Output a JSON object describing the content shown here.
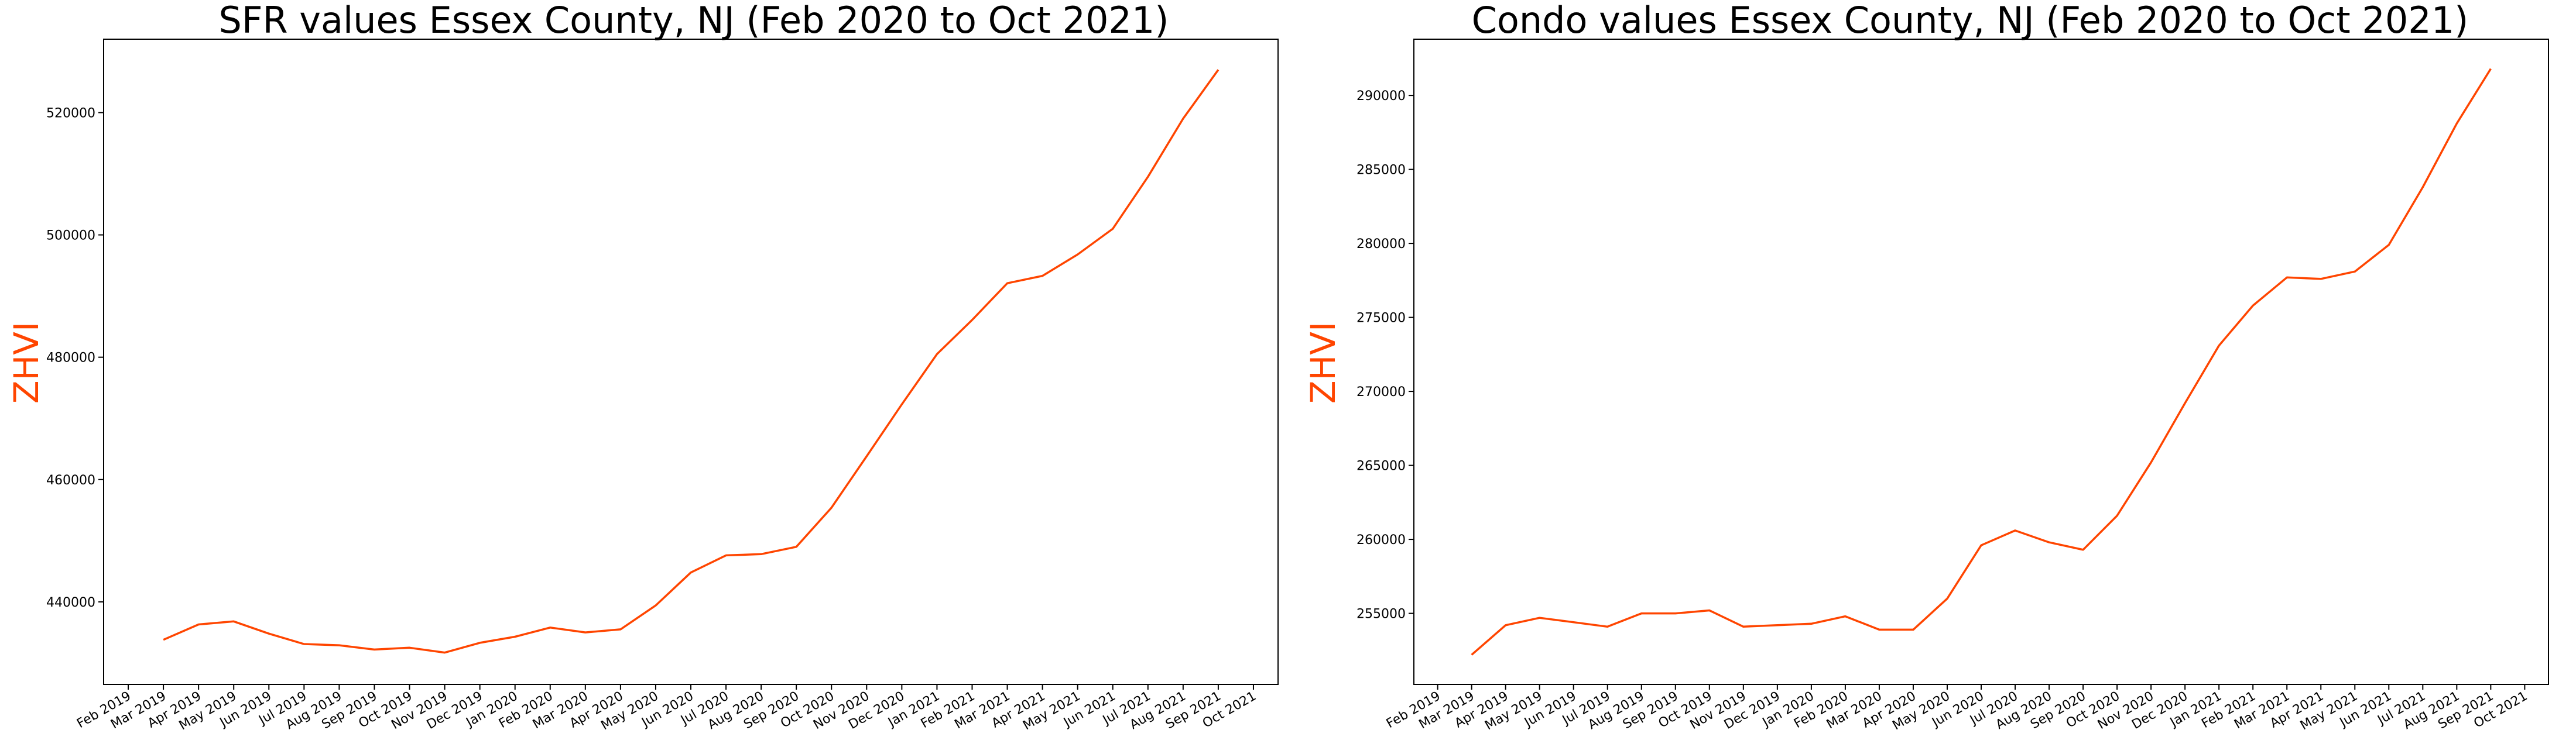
{
  "colors": {
    "line": "#ff4500",
    "ylabel": "#ff4500"
  },
  "chart_data": [
    {
      "type": "line",
      "title": "SFR values Essex County, NJ (Feb 2020 to Oct 2021)",
      "xlabel": "",
      "ylabel": "ZHVI",
      "grid": false,
      "categories": [
        "Feb 2019",
        "Mar 2019",
        "Apr 2019",
        "May 2019",
        "Jun 2019",
        "Jul 2019",
        "Aug 2019",
        "Sep 2019",
        "Oct 2019",
        "Nov 2019",
        "Dec 2019",
        "Jan 2020",
        "Feb 2020",
        "Mar 2020",
        "Apr 2020",
        "May 2020",
        "Jun 2020",
        "Jul 2020",
        "Aug 2020",
        "Sep 2020",
        "Oct 2020",
        "Nov 2020",
        "Dec 2020",
        "Jan 2021",
        "Feb 2021",
        "Mar 2021",
        "Apr 2021",
        "May 2021",
        "Jun 2021",
        "Jul 2021",
        "Aug 2021",
        "Sep 2021",
        "Oct 2021"
      ],
      "x": [
        "Mar 2019",
        "Apr 2019",
        "May 2019",
        "Jun 2019",
        "Jul 2019",
        "Aug 2019",
        "Sep 2019",
        "Oct 2019",
        "Nov 2019",
        "Dec 2019",
        "Jan 2020",
        "Feb 2020",
        "Mar 2020",
        "Apr 2020",
        "May 2020",
        "Jun 2020",
        "Jul 2020",
        "Aug 2020",
        "Sep 2020",
        "Oct 2020",
        "Nov 2020",
        "Dec 2020",
        "Jan 2021",
        "Feb 2021",
        "Mar 2021",
        "Apr 2021",
        "May 2021",
        "Jun 2021",
        "Jul 2021",
        "Aug 2021",
        "Sep 2021"
      ],
      "values": [
        433800,
        436300,
        436800,
        434800,
        433100,
        432900,
        432200,
        432500,
        431700,
        433300,
        434300,
        435800,
        435000,
        435500,
        439400,
        444800,
        447600,
        447800,
        449000,
        455400,
        463800,
        472300,
        480500,
        486100,
        492100,
        493300,
        496800,
        501000,
        509500,
        519000,
        527000
      ],
      "yticks": [
        440000,
        460000,
        480000,
        500000,
        520000
      ],
      "ylim": [
        426500,
        532000
      ]
    },
    {
      "type": "line",
      "title": "Condo values Essex County, NJ (Feb 2020 to Oct 2021)",
      "xlabel": "",
      "ylabel": "ZHVI",
      "grid": false,
      "categories": [
        "Feb 2019",
        "Mar 2019",
        "Apr 2019",
        "May 2019",
        "Jun 2019",
        "Jul 2019",
        "Aug 2019",
        "Sep 2019",
        "Oct 2019",
        "Nov 2019",
        "Dec 2019",
        "Jan 2020",
        "Feb 2020",
        "Mar 2020",
        "Apr 2020",
        "May 2020",
        "Jun 2020",
        "Jul 2020",
        "Aug 2020",
        "Sep 2020",
        "Oct 2020",
        "Nov 2020",
        "Dec 2020",
        "Jan 2021",
        "Feb 2021",
        "Mar 2021",
        "Apr 2021",
        "May 2021",
        "Jun 2021",
        "Jul 2021",
        "Aug 2021",
        "Sep 2021",
        "Oct 2021"
      ],
      "x": [
        "Mar 2019",
        "Apr 2019",
        "May 2019",
        "Jun 2019",
        "Jul 2019",
        "Aug 2019",
        "Sep 2019",
        "Oct 2019",
        "Nov 2019",
        "Dec 2019",
        "Jan 2020",
        "Feb 2020",
        "Mar 2020",
        "Apr 2020",
        "May 2020",
        "Jun 2020",
        "Jul 2020",
        "Aug 2020",
        "Sep 2020",
        "Oct 2020",
        "Nov 2020",
        "Dec 2020",
        "Jan 2021",
        "Feb 2021",
        "Mar 2021",
        "Apr 2021",
        "May 2021",
        "Jun 2021",
        "Jul 2021",
        "Aug 2021",
        "Sep 2021"
      ],
      "values": [
        252200,
        254200,
        254700,
        254400,
        254100,
        255000,
        255000,
        255200,
        254100,
        254200,
        254300,
        254800,
        253900,
        253900,
        256000,
        259600,
        260600,
        259800,
        259300,
        261600,
        265200,
        269200,
        273100,
        275800,
        277700,
        277600,
        278100,
        279900,
        283800,
        288100,
        291800
      ],
      "yticks": [
        255000,
        260000,
        265000,
        270000,
        275000,
        280000,
        285000,
        290000
      ],
      "ylim": [
        250200,
        293800
      ]
    }
  ]
}
